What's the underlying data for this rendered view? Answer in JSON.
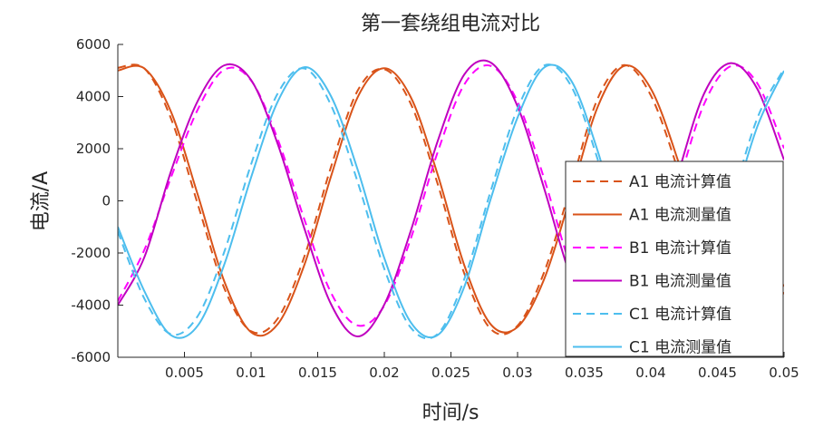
{
  "chart_data": {
    "type": "line",
    "title": "第一套绕组电流对比",
    "xlabel": "时间/s",
    "ylabel": "电流/A",
    "xlim": [
      0,
      0.05
    ],
    "ylim": [
      -6000,
      6000
    ],
    "x_ticks": [
      0.005,
      0.01,
      0.015,
      0.02,
      0.025,
      0.03,
      0.035,
      0.04,
      0.045,
      0.05
    ],
    "x_tick_labels": [
      "0.005",
      "0.01",
      "0.015",
      "0.02",
      "0.025",
      "0.03",
      "0.035",
      "0.04",
      "0.045",
      "0.05"
    ],
    "y_ticks": [
      -6000,
      -4000,
      -2000,
      0,
      2000,
      4000,
      6000
    ],
    "y_tick_labels": [
      "-6000",
      "-4000",
      "-2000",
      "0",
      "2000",
      "4000",
      "6000"
    ],
    "grid": false,
    "legend_position": "bottom-right",
    "series": [
      {
        "name": "A1 电流计算值",
        "color": "#D95319",
        "style": "dashed",
        "x": [
          0,
          0.002,
          0.004,
          0.006,
          0.008,
          0.01,
          0.012,
          0.014,
          0.016,
          0.018,
          0.02,
          0.022,
          0.024,
          0.026,
          0.028,
          0.03,
          0.032,
          0.034,
          0.036,
          0.038,
          0.04,
          0.042,
          0.044,
          0.046,
          0.048,
          0.05
        ],
        "y": [
          5104,
          5075,
          3145,
          -131,
          -3364,
          -5000,
          -4516,
          -2134,
          1303,
          4230,
          5048,
          3706,
          653,
          -2784,
          -4924,
          -4788,
          -2730,
          559,
          3908,
          5207,
          4046,
          1242,
          -2199,
          -4746,
          -4984,
          -3203
        ]
      },
      {
        "name": "A1 电流测量值",
        "color": "#D95319",
        "style": "solid",
        "x": [
          0,
          0.002,
          0.004,
          0.006,
          0.008,
          0.01,
          0.012,
          0.014,
          0.016,
          0.018,
          0.02,
          0.022,
          0.024,
          0.026,
          0.028,
          0.03,
          0.032,
          0.034,
          0.036,
          0.038,
          0.04,
          0.042,
          0.044,
          0.046,
          0.048,
          0.05
        ],
        "y": [
          5000,
          5075,
          3404,
          232,
          -3103,
          -5038,
          -4732,
          -2455,
          941,
          3976,
          5086,
          3961,
          1015,
          -2469,
          -4746,
          -4838,
          -2996,
          211,
          3586,
          5175,
          4306,
          1606,
          -1849,
          -4517,
          -5076,
          -3503
        ]
      },
      {
        "name": "B1 电流计算值",
        "color": "#FF00FF",
        "style": "dashed",
        "x": [
          0,
          0.002,
          0.004,
          0.006,
          0.008,
          0.01,
          0.012,
          0.014,
          0.016,
          0.018,
          0.02,
          0.022,
          0.024,
          0.026,
          0.028,
          0.03,
          0.032,
          0.034,
          0.036,
          0.038,
          0.04,
          0.042,
          0.044,
          0.046,
          0.048,
          0.05
        ],
        "y": [
          -3846,
          -1870,
          914,
          3506,
          5035,
          4618,
          2366,
          -715,
          -3524,
          -4780,
          -4017,
          -1427,
          1862,
          4463,
          5174,
          3800,
          845,
          -2532,
          -4680,
          -4904,
          -2915,
          525,
          3713,
          5163,
          4503,
          2012
        ]
      },
      {
        "name": "B1 电流测量值",
        "color": "#BF00BF",
        "style": "solid",
        "x": [
          0,
          0.002,
          0.004,
          0.006,
          0.008,
          0.01,
          0.012,
          0.014,
          0.016,
          0.018,
          0.02,
          0.022,
          0.024,
          0.026,
          0.028,
          0.03,
          0.032,
          0.034,
          0.036,
          0.038,
          0.04,
          0.042,
          0.044,
          0.046,
          0.048,
          0.05
        ],
        "y": [
          -4000,
          -2150,
          1148,
          3834,
          5200,
          4636,
          2182,
          -1061,
          -3961,
          -5200,
          -3977,
          -1127,
          2283,
          4845,
          5300,
          3621,
          469,
          -2944,
          -5020,
          -4932,
          -2656,
          938,
          4114,
          5281,
          4288,
          1568
        ]
      },
      {
        "name": "C1 电流计算值",
        "color": "#4DBEEE",
        "style": "dashed",
        "x": [
          0,
          0.002,
          0.004,
          0.006,
          0.008,
          0.01,
          0.012,
          0.014,
          0.016,
          0.018,
          0.02,
          0.022,
          0.024,
          0.026,
          0.028,
          0.03,
          0.032,
          0.034,
          0.036,
          0.038,
          0.04,
          0.042,
          0.044,
          0.046,
          0.048,
          0.05
        ],
        "y": [
          -1180,
          -3760,
          -5116,
          -4417,
          -1939,
          1399,
          4122,
          5079,
          3669,
          723,
          -2608,
          -4872,
          -5107,
          -3001,
          402,
          3537,
          5195,
          4422,
          1611,
          -1975,
          -4570,
          -5233,
          -3511,
          -136,
          3180,
          5068
        ]
      },
      {
        "name": "C1 电流测量值",
        "color": "#4DBEEE",
        "style": "solid",
        "x": [
          0,
          0.002,
          0.004,
          0.006,
          0.008,
          0.01,
          0.012,
          0.014,
          0.016,
          0.018,
          0.02,
          0.022,
          0.024,
          0.026,
          0.028,
          0.03,
          0.032,
          0.034,
          0.036,
          0.038,
          0.04,
          0.042,
          0.044,
          0.046,
          0.048,
          0.05
        ],
        "y": [
          -1000,
          -3471,
          -5156,
          -4785,
          -2424,
          898,
          3807,
          5127,
          4013,
          1197,
          -2198,
          -4671,
          -5150,
          -3299,
          97,
          3196,
          5117,
          4632,
          1934,
          -1635,
          -4376,
          -5294,
          -3773,
          -478,
          2859,
          4991
        ]
      }
    ]
  }
}
